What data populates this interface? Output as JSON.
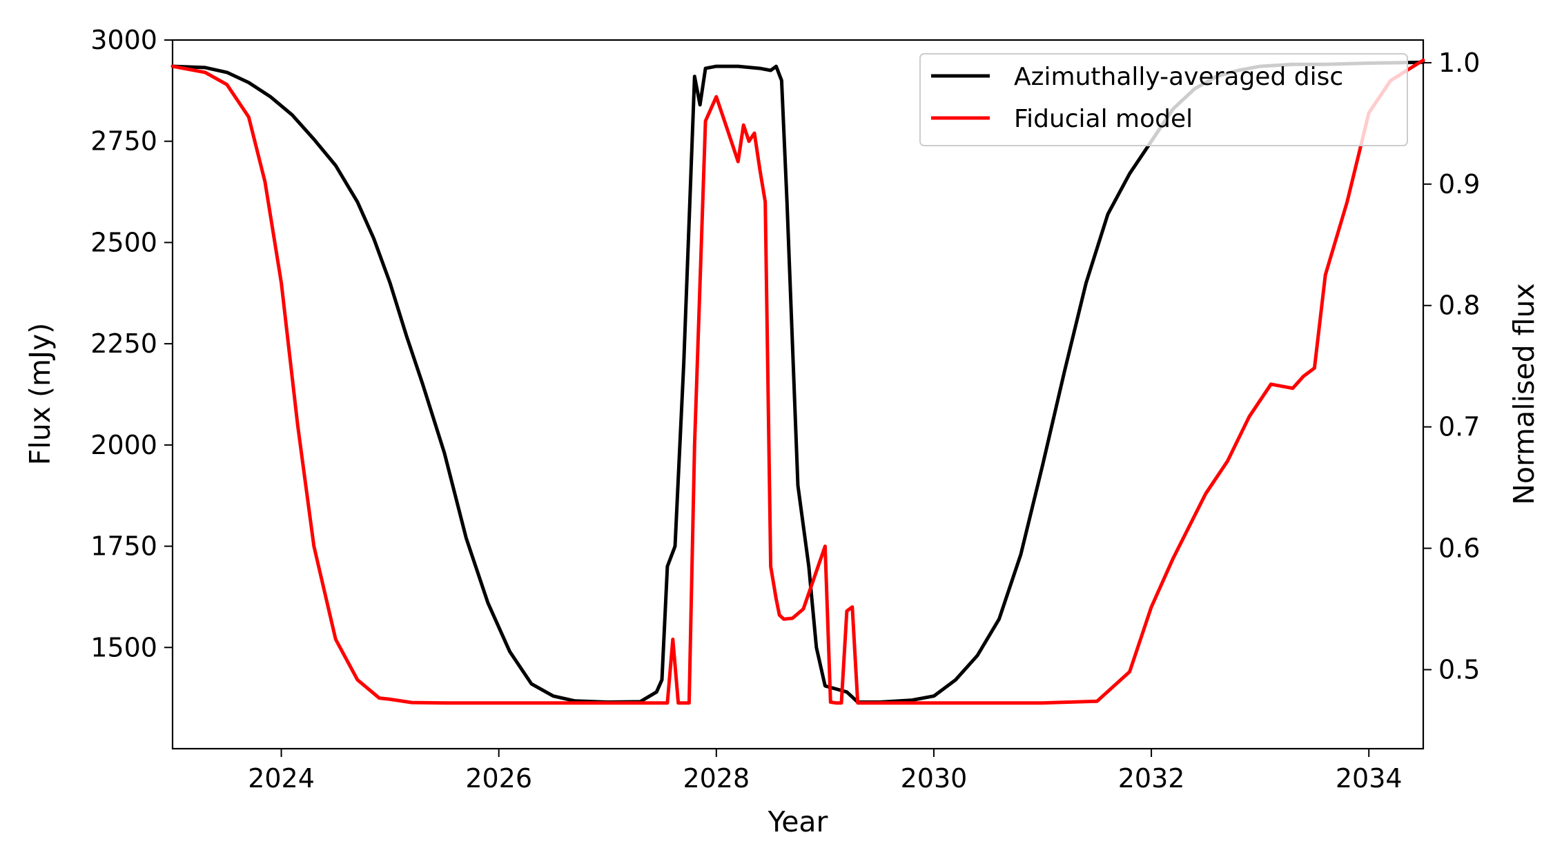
{
  "chart_data": {
    "type": "line",
    "title": "",
    "xlabel": "Year",
    "ylabel": "Flux (mJy)",
    "y2label": "Normalised flux",
    "xlim": [
      2023.0,
      2034.5
    ],
    "ylim": [
      1250,
      3000
    ],
    "y2lim": [
      0.4349,
      1.0187
    ],
    "x_ticks": [
      2024,
      2026,
      2028,
      2030,
      2032,
      2034
    ],
    "x_tick_labels": [
      "2024",
      "2026",
      "2028",
      "2030",
      "2032",
      "2034"
    ],
    "y_ticks": [
      1500,
      1750,
      2000,
      2250,
      2500,
      2750,
      3000
    ],
    "y_tick_labels": [
      "1500",
      "1750",
      "2000",
      "2250",
      "2500",
      "2750",
      "3000"
    ],
    "y2_ticks": [
      0.5,
      0.6,
      0.7,
      0.8,
      0.9,
      1.0
    ],
    "y2_tick_labels": [
      "0.5",
      "0.6",
      "0.7",
      "0.8",
      "0.9",
      "1.0"
    ],
    "grid": false,
    "legend_position": "top-right",
    "series": [
      {
        "name": "Azimuthally-averaged disc",
        "color": "#000000",
        "x": [
          2023.0,
          2023.3,
          2023.5,
          2023.7,
          2023.9,
          2024.1,
          2024.3,
          2024.5,
          2024.7,
          2024.85,
          2025.0,
          2025.15,
          2025.3,
          2025.5,
          2025.7,
          2025.9,
          2026.1,
          2026.3,
          2026.5,
          2026.7,
          2027.0,
          2027.3,
          2027.45,
          2027.5,
          2027.55,
          2027.62,
          2027.7,
          2027.8,
          2027.85,
          2027.9,
          2028.0,
          2028.2,
          2028.4,
          2028.5,
          2028.55,
          2028.6,
          2028.65,
          2028.75,
          2028.85,
          2028.92,
          2029.0,
          2029.2,
          2029.3,
          2029.5,
          2029.8,
          2030.0,
          2030.2,
          2030.4,
          2030.6,
          2030.8,
          2031.0,
          2031.2,
          2031.4,
          2031.6,
          2031.8,
          2032.0,
          2032.2,
          2032.4,
          2032.6,
          2032.8,
          2033.0,
          2033.3,
          2033.6,
          2034.0,
          2034.5
        ],
        "values": [
          2935,
          2932,
          2920,
          2895,
          2860,
          2815,
          2755,
          2690,
          2600,
          2510,
          2400,
          2270,
          2150,
          1980,
          1770,
          1610,
          1490,
          1410,
          1380,
          1368,
          1365,
          1366,
          1390,
          1420,
          1700,
          1750,
          2200,
          2910,
          2840,
          2930,
          2935,
          2935,
          2930,
          2925,
          2935,
          2900,
          2600,
          1900,
          1700,
          1500,
          1405,
          1390,
          1365,
          1365,
          1370,
          1380,
          1420,
          1480,
          1570,
          1730,
          1950,
          2180,
          2400,
          2570,
          2670,
          2750,
          2830,
          2880,
          2910,
          2925,
          2935,
          2940,
          2940,
          2943,
          2945
        ]
      },
      {
        "name": "Fiducial model",
        "color": "#ff0000",
        "x": [
          2023.0,
          2023.3,
          2023.5,
          2023.7,
          2023.85,
          2024.0,
          2024.15,
          2024.3,
          2024.5,
          2024.7,
          2024.9,
          2025.0,
          2025.2,
          2025.5,
          2026.0,
          2027.0,
          2027.55,
          2027.6,
          2027.65,
          2027.7,
          2027.75,
          2027.8,
          2027.9,
          2028.0,
          2028.1,
          2028.2,
          2028.25,
          2028.3,
          2028.35,
          2028.4,
          2028.45,
          2028.5,
          2028.55,
          2028.58,
          2028.62,
          2028.7,
          2028.8,
          2029.0,
          2029.05,
          2029.1,
          2029.15,
          2029.2,
          2029.25,
          2029.3,
          2029.35,
          2029.4,
          2029.5,
          2030.0,
          2031.0,
          2031.5,
          2031.8,
          2032.0,
          2032.2,
          2032.5,
          2032.7,
          2032.9,
          2033.1,
          2033.3,
          2033.4,
          2033.5,
          2033.6,
          2033.8,
          2034.0,
          2034.2,
          2034.5
        ],
        "values": [
          2935,
          2920,
          2890,
          2810,
          2650,
          2400,
          2050,
          1750,
          1520,
          1420,
          1375,
          1372,
          1364,
          1363,
          1363,
          1363,
          1363,
          1520,
          1363,
          1363,
          1363,
          2000,
          2800,
          2860,
          2780,
          2700,
          2790,
          2750,
          2770,
          2680,
          2600,
          1700,
          1620,
          1580,
          1570,
          1572,
          1595,
          1750,
          1365,
          1363,
          1363,
          1590,
          1600,
          1363,
          1363,
          1363,
          1363,
          1363,
          1363,
          1367,
          1440,
          1600,
          1720,
          1880,
          1960,
          2070,
          2150,
          2140,
          2170,
          2190,
          2420,
          2600,
          2820,
          2900,
          2950
        ]
      }
    ]
  }
}
